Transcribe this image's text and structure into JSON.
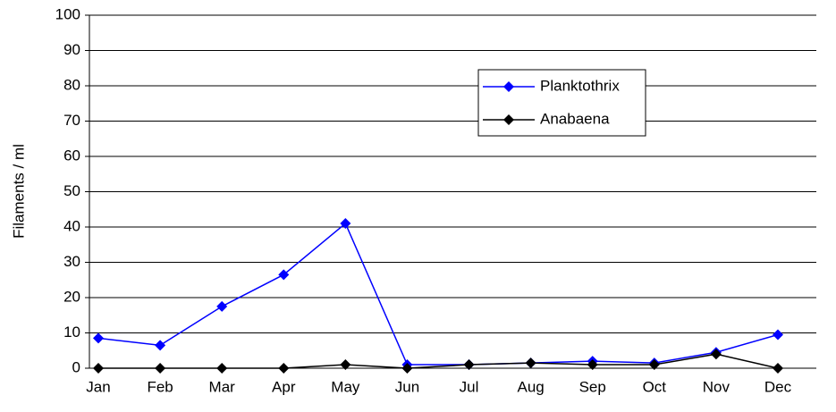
{
  "chart_data": {
    "type": "line",
    "y_label": "Filaments / ml",
    "categories": [
      "Jan",
      "Feb",
      "Mar",
      "Apr",
      "May",
      "Jun",
      "Jul",
      "Aug",
      "Sep",
      "Oct",
      "Nov",
      "Dec"
    ],
    "series": [
      {
        "name": "Planktothrix",
        "color": "#0000ff",
        "values": [
          8.5,
          6.5,
          17.5,
          26.5,
          41,
          1,
          1,
          1.5,
          2,
          1.5,
          4.5,
          9.5
        ]
      },
      {
        "name": "Anabaena",
        "color": "#000000",
        "values": [
          0,
          0,
          0,
          0,
          1,
          0,
          1,
          1.5,
          1,
          1,
          4,
          0
        ]
      }
    ],
    "ylim": [
      0,
      100
    ],
    "yticks": [
      0,
      10,
      20,
      30,
      40,
      50,
      60,
      70,
      80,
      90,
      100
    ],
    "grid": true
  }
}
